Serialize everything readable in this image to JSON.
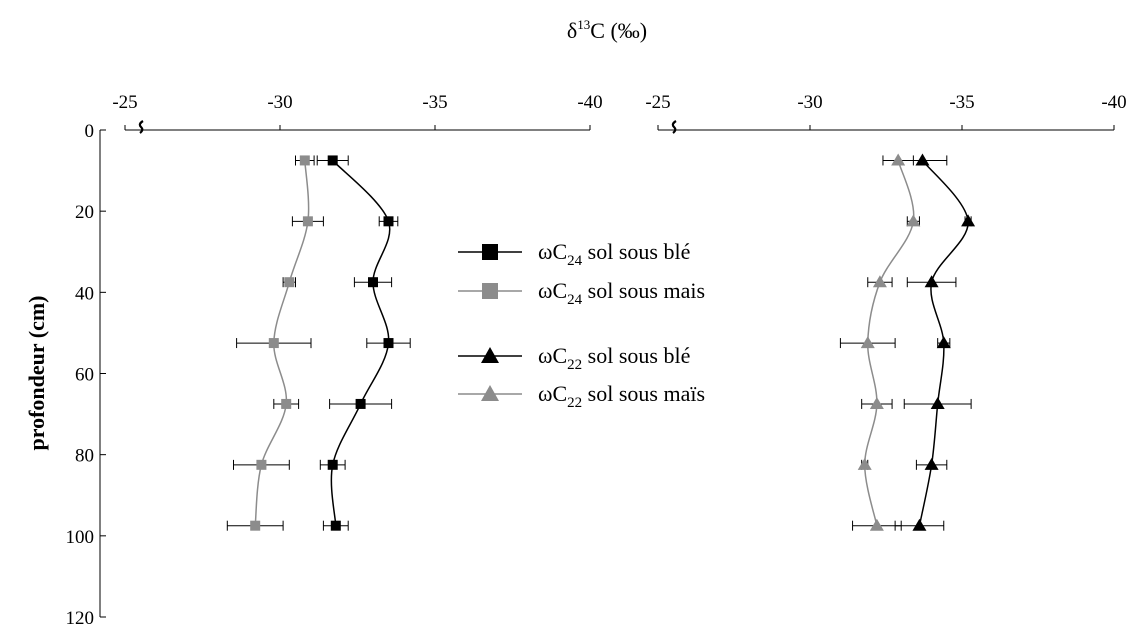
{
  "chart_data": {
    "type": "line",
    "title_main": "δ",
    "title_sup": "13",
    "title_rest": "C (‰)",
    "ylabel": "profondeur (cm)",
    "y_ticks": [
      "0",
      "20",
      "40",
      "60",
      "80",
      "100",
      "120"
    ],
    "ylim": [
      0,
      120
    ],
    "colors": {
      "black": "#000000",
      "gray": "#8c8c8c"
    },
    "panels": [
      {
        "name": "left",
        "x_ticks": [
          "-25",
          "-30",
          "-35",
          "-40"
        ],
        "xlim": [
          -25,
          -40
        ],
        "series": [
          {
            "name": "ωC24 sol sous blé",
            "marker": "square",
            "color": "#000000",
            "points": [
              {
                "depth": 7.5,
                "d13c": -31.7,
                "err": 0.5
              },
              {
                "depth": 22.5,
                "d13c": -33.5,
                "err": 0.3
              },
              {
                "depth": 37.5,
                "d13c": -33.0,
                "err": 0.6
              },
              {
                "depth": 52.5,
                "d13c": -33.5,
                "err": 0.7
              },
              {
                "depth": 67.5,
                "d13c": -32.6,
                "err": 1.0
              },
              {
                "depth": 82.5,
                "d13c": -31.7,
                "err": 0.4
              },
              {
                "depth": 97.5,
                "d13c": -31.8,
                "err": 0.4
              }
            ]
          },
          {
            "name": "ωC24 sol sous mais",
            "marker": "square",
            "color": "#8c8c8c",
            "points": [
              {
                "depth": 7.5,
                "d13c": -30.8,
                "err": 0.3
              },
              {
                "depth": 22.5,
                "d13c": -30.9,
                "err": 0.5
              },
              {
                "depth": 37.5,
                "d13c": -30.3,
                "err": 0.2
              },
              {
                "depth": 52.5,
                "d13c": -29.8,
                "err": 1.2
              },
              {
                "depth": 67.5,
                "d13c": -30.2,
                "err": 0.4
              },
              {
                "depth": 82.5,
                "d13c": -29.4,
                "err": 0.9
              },
              {
                "depth": 97.5,
                "d13c": -29.2,
                "err": 0.9
              }
            ]
          }
        ]
      },
      {
        "name": "right",
        "x_ticks": [
          "-25",
          "-30",
          "-35",
          "-40"
        ],
        "xlim": [
          -25,
          -40
        ],
        "series": [
          {
            "name": "ωC22 sol sous blé",
            "marker": "triangle",
            "color": "#000000",
            "points": [
              {
                "depth": 7.5,
                "d13c": -33.7,
                "err": 0.8
              },
              {
                "depth": 22.5,
                "d13c": -35.2,
                "err": 0.1
              },
              {
                "depth": 37.5,
                "d13c": -34.0,
                "err": 0.8
              },
              {
                "depth": 52.5,
                "d13c": -34.4,
                "err": 0.2
              },
              {
                "depth": 67.5,
                "d13c": -34.2,
                "err": 1.1
              },
              {
                "depth": 82.5,
                "d13c": -34.0,
                "err": 0.5
              },
              {
                "depth": 97.5,
                "d13c": -33.6,
                "err": 0.8
              }
            ]
          },
          {
            "name": "ωC22 sol sous maïs",
            "marker": "triangle",
            "color": "#8c8c8c",
            "points": [
              {
                "depth": 7.5,
                "d13c": -32.9,
                "err": 0.5
              },
              {
                "depth": 22.5,
                "d13c": -33.4,
                "err": 0.2
              },
              {
                "depth": 37.5,
                "d13c": -32.3,
                "err": 0.4
              },
              {
                "depth": 52.5,
                "d13c": -31.9,
                "err": 0.9
              },
              {
                "depth": 67.5,
                "d13c": -32.2,
                "err": 0.5
              },
              {
                "depth": 82.5,
                "d13c": -31.8,
                "err": 0.1
              },
              {
                "depth": 97.5,
                "d13c": -32.2,
                "err": 0.8
              }
            ]
          }
        ]
      }
    ],
    "legend": [
      {
        "prefix": "ωC",
        "sub": "24",
        "suffix": " sol sous blé",
        "marker": "square",
        "color": "#000000"
      },
      {
        "prefix": "ωC",
        "sub": "24",
        "suffix": " sol sous mais",
        "marker": "square",
        "color": "#8c8c8c"
      },
      {
        "prefix": "ωC",
        "sub": "22",
        "suffix": " sol sous blé",
        "marker": "triangle",
        "color": "#000000"
      },
      {
        "prefix": "ωC",
        "sub": "22",
        "suffix": " sol sous maïs",
        "marker": "triangle",
        "color": "#8c8c8c"
      }
    ]
  }
}
